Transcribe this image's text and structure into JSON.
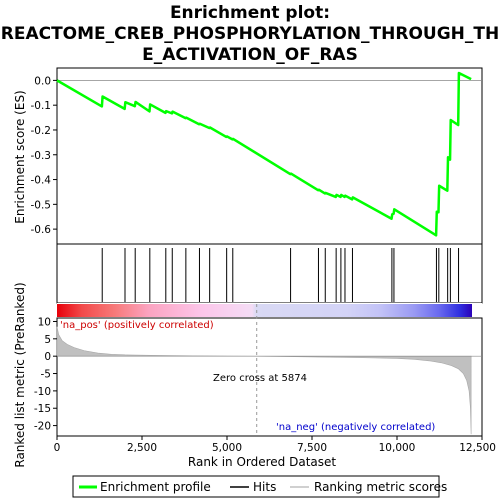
{
  "chart_data": {
    "type": "line",
    "title": "Enrichment plot:\nREACTOME_CREB_PHOSPHORYLATION_THROUGH_TH\nE_ACTIVATION_OF_RAS",
    "title_lines": [
      "Enrichment plot:",
      "REACTOME_CREB_PHOSPHORYLATION_THROUGH_TH",
      "E_ACTIVATION_OF_RAS"
    ],
    "es_ylabel": "Enrichment score (ES)",
    "metric_ylabel": "Ranked list metric (PreRanked)",
    "xlabel": "Rank in Ordered Dataset",
    "xlim": [
      0,
      12500
    ],
    "es_ylim": [
      -0.66,
      0.05
    ],
    "metric_ylim": [
      -23,
      11
    ],
    "x_ticks": [
      0,
      2500,
      5000,
      7500,
      10000,
      12500
    ],
    "x_tick_labels": [
      "0",
      "2,500",
      "5,000",
      "7,500",
      "10,000",
      "12,500"
    ],
    "es_ticks": [
      0.0,
      -0.1,
      -0.2,
      -0.3,
      -0.4,
      -0.5,
      -0.6
    ],
    "es_tick_labels": [
      "0.0",
      "-0.1",
      "-0.2",
      "-0.3",
      "-0.4",
      "-0.5",
      "-0.6"
    ],
    "metric_ticks": [
      10,
      5,
      0,
      -5,
      -10,
      -15,
      -20
    ],
    "metric_tick_labels": [
      "10",
      "5",
      "0",
      "-5",
      "-10",
      "-15",
      "-20"
    ],
    "enrichment_profile": {
      "name": "Enrichment profile",
      "color": "#00ff00",
      "x": [
        0,
        1320,
        1340,
        1990,
        2010,
        2290,
        2310,
        2720,
        2740,
        3190,
        3210,
        3380,
        3400,
        3780,
        3800,
        4180,
        4200,
        4480,
        4500,
        4980,
        5000,
        5160,
        5180,
        6860,
        6880,
        7680,
        7700,
        7880,
        7900,
        8200,
        8220,
        8340,
        8360,
        8460,
        8480,
        8680,
        8700,
        9840,
        9860,
        9900,
        9920,
        11150,
        11170,
        11220,
        11240,
        11480,
        11500,
        11560,
        11580,
        11800,
        11820,
        12180
      ],
      "y": [
        0.0,
        -0.105,
        -0.065,
        -0.115,
        -0.088,
        -0.104,
        -0.087,
        -0.125,
        -0.097,
        -0.131,
        -0.124,
        -0.133,
        -0.126,
        -0.152,
        -0.15,
        -0.177,
        -0.175,
        -0.192,
        -0.19,
        -0.228,
        -0.226,
        -0.238,
        -0.236,
        -0.378,
        -0.376,
        -0.443,
        -0.441,
        -0.456,
        -0.454,
        -0.47,
        -0.462,
        -0.47,
        -0.462,
        -0.47,
        -0.465,
        -0.48,
        -0.472,
        -0.558,
        -0.54,
        -0.538,
        -0.52,
        -0.625,
        -0.53,
        -0.532,
        -0.425,
        -0.445,
        -0.31,
        -0.32,
        -0.16,
        -0.18,
        0.03,
        0.005
      ]
    },
    "hits": [
      1330,
      2000,
      2300,
      2730,
      3200,
      3390,
      3790,
      4190,
      4490,
      4990,
      5170,
      6870,
      7690,
      7890,
      8210,
      8350,
      8470,
      8690,
      9850,
      9910,
      11160,
      11230,
      11490,
      11570,
      11810
    ],
    "ranking_metric": {
      "name": "Ranking metric scores",
      "x": [
        0,
        50,
        150,
        300,
        500,
        800,
        1200,
        1600,
        2000,
        3000,
        4000,
        5000,
        5874,
        7000,
        8000,
        9000,
        10000,
        10500,
        11000,
        11300,
        11600,
        11800,
        11950,
        12050,
        12120,
        12160,
        12180
      ],
      "y": [
        8.5,
        6.2,
        4.5,
        3.4,
        2.5,
        1.6,
        0.9,
        0.55,
        0.38,
        0.22,
        0.12,
        0.05,
        0.0,
        -0.15,
        -0.3,
        -0.45,
        -0.65,
        -0.9,
        -1.4,
        -1.9,
        -2.7,
        -3.6,
        -5.0,
        -7.0,
        -10.0,
        -15.0,
        -22.5
      ]
    },
    "zero_cross": 5874,
    "zero_cross_label": "Zero cross at 5874",
    "pos_label": "'na_pos' (positively correlated)",
    "neg_label": "'na_neg' (negatively correlated)",
    "pos_label_color": "#cc0000",
    "neg_label_color": "#0000cc",
    "legend": [
      {
        "label": "Enrichment profile",
        "color": "#00ff00"
      },
      {
        "label": "Hits",
        "color": "#000000"
      },
      {
        "label": "Ranking metric scores",
        "color": "#c0c0c0"
      }
    ]
  }
}
